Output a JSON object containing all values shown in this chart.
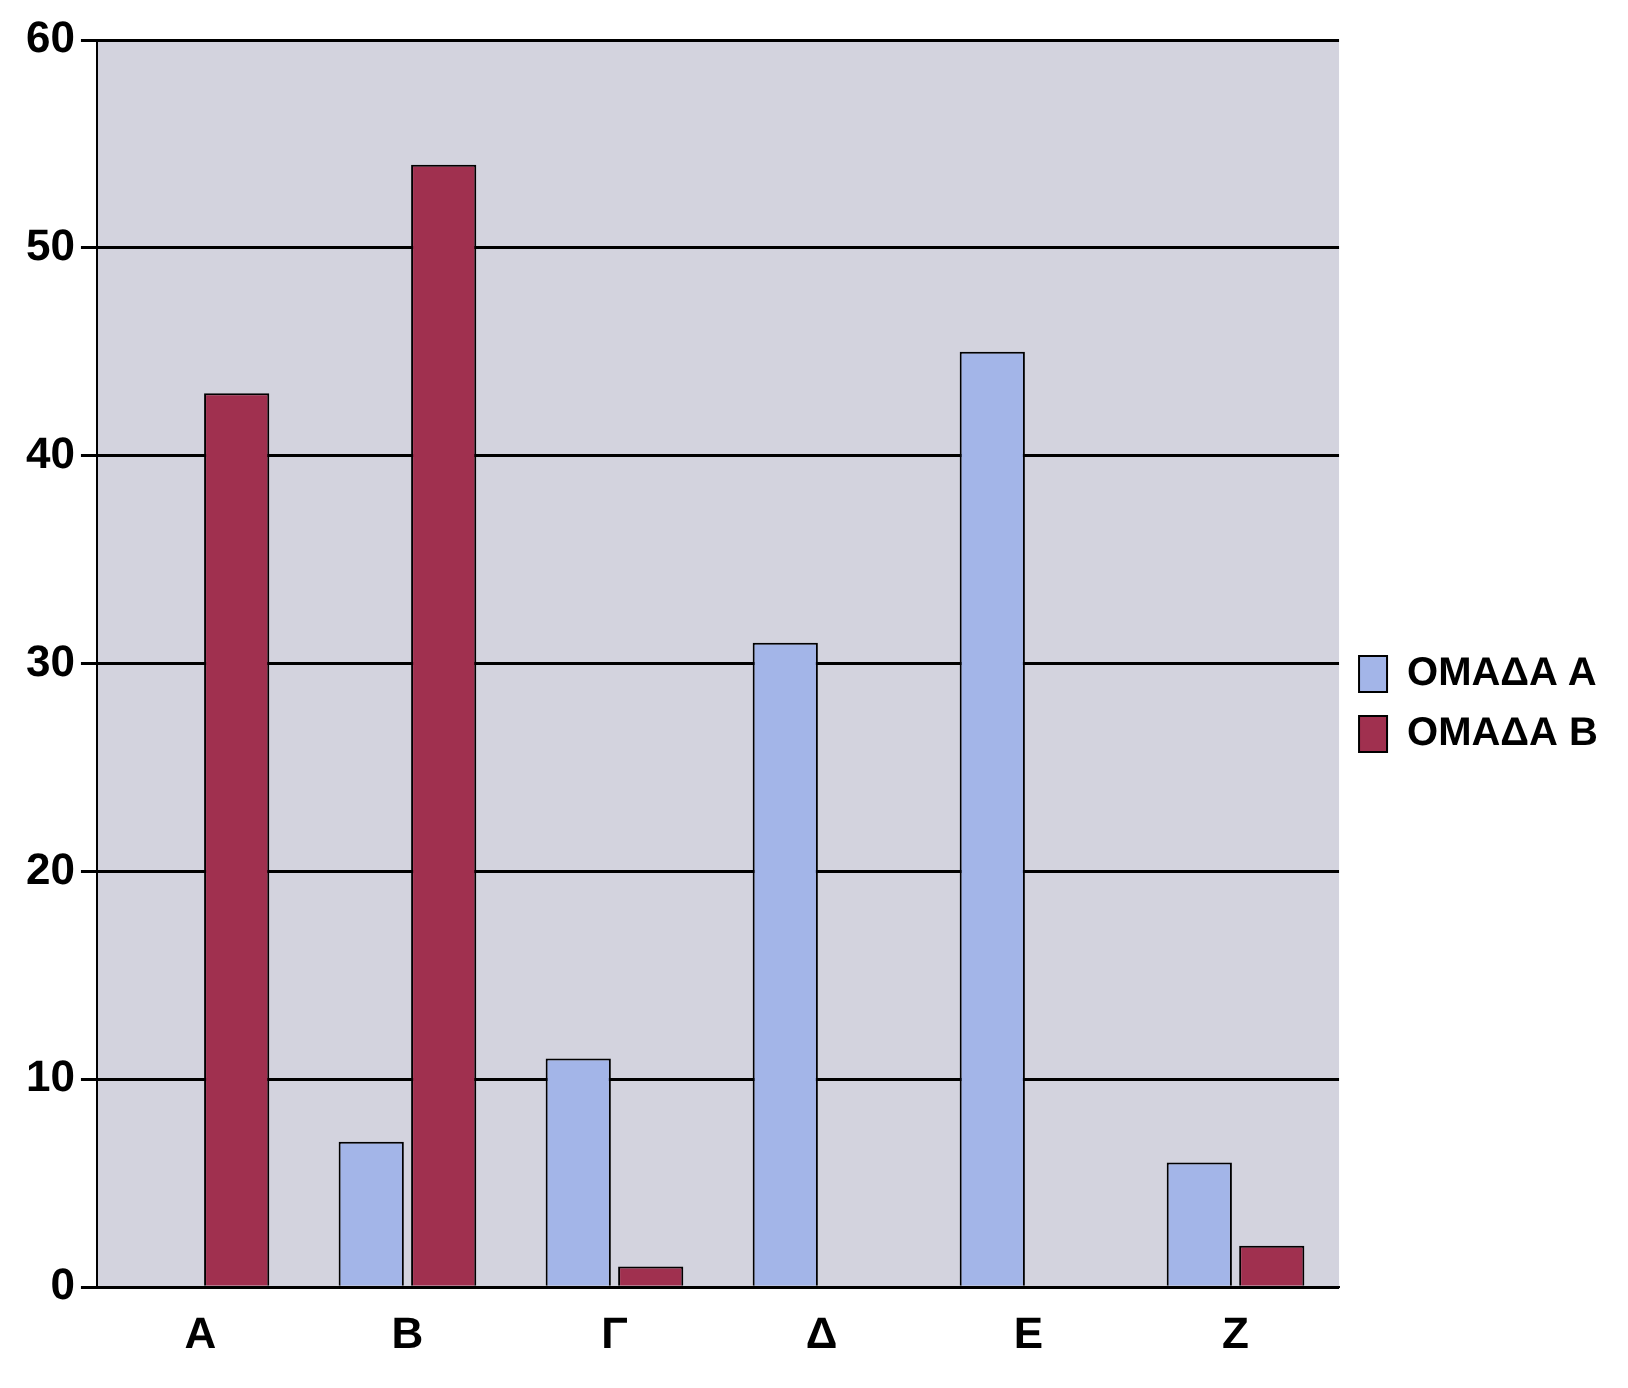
{
  "chart_data": {
    "type": "bar",
    "categories": [
      "A",
      "B",
      "Γ",
      "Δ",
      "E",
      "Z"
    ],
    "series": [
      {
        "name": "ΟΜΑΔΑ Α",
        "color": "#a3b5e8",
        "values": [
          0,
          7,
          11,
          31,
          45,
          6
        ]
      },
      {
        "name": "ΟΜΑΔΑ Β",
        "color": "#a0304f",
        "values": [
          43,
          54,
          1,
          0,
          0,
          2
        ]
      }
    ],
    "ylim": [
      0,
      60
    ],
    "yticks": [
      0,
      10,
      20,
      30,
      40,
      50,
      60
    ],
    "grid": "y",
    "legend": "right"
  }
}
